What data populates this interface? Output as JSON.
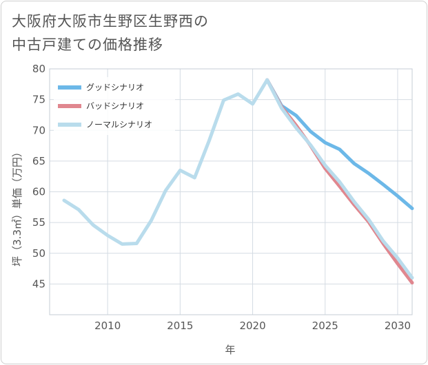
{
  "title_line1": "大阪府大阪市生野区生野西の",
  "title_line2": "中古戸建ての価格推移",
  "chart_data": {
    "type": "line",
    "xlabel": "年",
    "ylabel": "坪（3.3㎡）単価（万円）",
    "xlim": [
      2006,
      2031
    ],
    "ylim": [
      40,
      80
    ],
    "xticks": [
      2010,
      2015,
      2020,
      2025,
      2030
    ],
    "yticks": [
      45,
      50,
      55,
      60,
      65,
      70,
      75,
      80
    ],
    "grid": true,
    "legend_position": "top-left",
    "series": [
      {
        "name": "グッドシナリオ",
        "color": "#6cb8e8",
        "x": [
          2021,
          2022,
          2023,
          2024,
          2025,
          2026,
          2027,
          2028,
          2029,
          2030,
          2031
        ],
        "values": [
          78.2,
          74.0,
          72.4,
          69.8,
          68.0,
          66.9,
          64.6,
          63.0,
          61.2,
          59.3,
          57.3
        ]
      },
      {
        "name": "バッドシナリオ",
        "color": "#e0878f",
        "x": [
          2021,
          2022,
          2023,
          2024,
          2025,
          2026,
          2027,
          2028,
          2029,
          2030,
          2031
        ],
        "values": [
          78.2,
          73.8,
          70.8,
          67.5,
          63.8,
          60.9,
          57.9,
          55.1,
          51.6,
          48.3,
          45.2
        ]
      },
      {
        "name": "ノーマルシナリオ",
        "color": "#b9dcec",
        "x": [
          2007,
          2008,
          2009,
          2010,
          2011,
          2012,
          2013,
          2014,
          2015,
          2016,
          2017,
          2018,
          2019,
          2020,
          2021,
          2022,
          2023,
          2024,
          2025,
          2026,
          2027,
          2028,
          2029,
          2030,
          2031
        ],
        "values": [
          58.6,
          57.1,
          54.6,
          52.9,
          51.5,
          51.6,
          55.3,
          60.2,
          63.5,
          62.3,
          68.3,
          74.9,
          75.9,
          74.3,
          78.2,
          73.6,
          70.4,
          67.6,
          64.3,
          61.6,
          58.4,
          55.5,
          52.0,
          49.2,
          46.0
        ]
      }
    ]
  }
}
